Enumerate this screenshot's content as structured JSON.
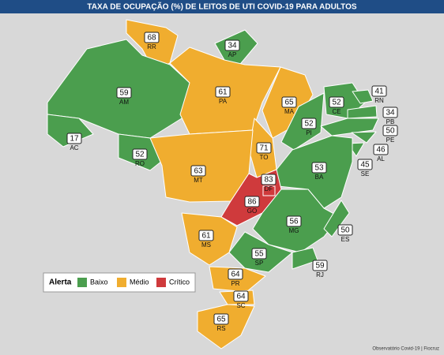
{
  "title": "TAXA DE OCUPAÇÃO (%) DE LEITOS DE UTI COVID-19 PARA ADULTOS",
  "states": [
    {
      "abbr": "RR",
      "value": 68,
      "level": 1
    },
    {
      "abbr": "AP",
      "value": 34,
      "level": 0
    },
    {
      "abbr": "AM",
      "value": 59,
      "level": 0
    },
    {
      "abbr": "AC",
      "value": 17,
      "level": 0
    },
    {
      "abbr": "RO",
      "value": 52,
      "level": 0
    },
    {
      "abbr": "PA",
      "value": 61,
      "level": 1
    },
    {
      "abbr": "MA",
      "value": 65,
      "level": 1
    },
    {
      "abbr": "TO",
      "value": 71,
      "level": 1
    },
    {
      "abbr": "PI",
      "value": 52,
      "level": 0
    },
    {
      "abbr": "CE",
      "value": 52,
      "level": 0
    },
    {
      "abbr": "RN",
      "value": 41,
      "level": 0
    },
    {
      "abbr": "PB",
      "value": 34,
      "level": 0
    },
    {
      "abbr": "PE",
      "value": 50,
      "level": 0
    },
    {
      "abbr": "AL",
      "value": 46,
      "level": 0
    },
    {
      "abbr": "SE",
      "value": 45,
      "level": 0
    },
    {
      "abbr": "BA",
      "value": 53,
      "level": 0
    },
    {
      "abbr": "MT",
      "value": 63,
      "level": 1
    },
    {
      "abbr": "GO",
      "value": 86,
      "level": 2
    },
    {
      "abbr": "DF",
      "value": 83,
      "level": 2
    },
    {
      "abbr": "MG",
      "value": 56,
      "level": 0
    },
    {
      "abbr": "ES",
      "value": 50,
      "level": 0
    },
    {
      "abbr": "MS",
      "value": 61,
      "level": 1
    },
    {
      "abbr": "SP",
      "value": 55,
      "level": 0
    },
    {
      "abbr": "RJ",
      "value": 59,
      "level": 0
    },
    {
      "abbr": "PR",
      "value": 64,
      "level": 1
    },
    {
      "abbr": "SC",
      "value": 64,
      "level": 1
    },
    {
      "abbr": "RS",
      "value": 65,
      "level": 1
    }
  ],
  "legend": {
    "title": "Alerta",
    "levels": [
      {
        "label": "Baixo",
        "color": "#4b9e4e"
      },
      {
        "label": "Médio",
        "color": "#f0ad2f"
      },
      {
        "label": "Crítico",
        "color": "#cf3a3c"
      }
    ]
  },
  "source": "Observatório Covid-19 | Fiocruz"
}
